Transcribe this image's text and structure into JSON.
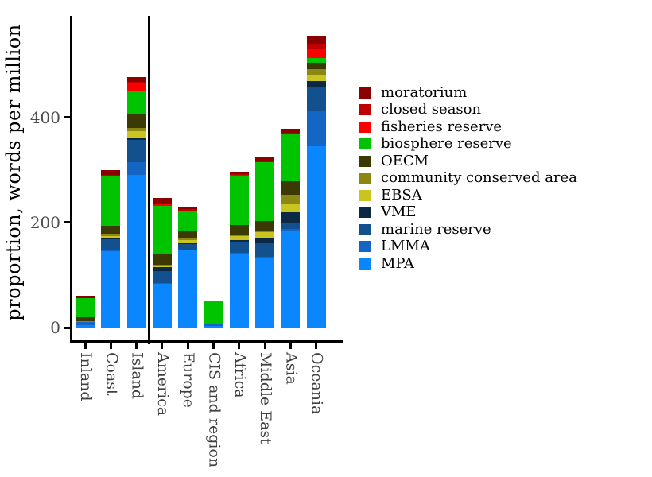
{
  "chart_data": {
    "type": "bar",
    "stacked": true,
    "title": "",
    "xlabel": "",
    "ylabel": "proportion, words per million",
    "ylim": [
      0,
      570
    ],
    "yticks": [
      "0",
      "200",
      "400"
    ],
    "grid": false,
    "legend_position": "right",
    "categories": [
      "Inland",
      "Coast",
      "Island",
      "America",
      "Europe",
      "CIS and region",
      "Africa",
      "Middle East",
      "Asia",
      "Oceania"
    ],
    "group_separator_after_category": "Island",
    "stack_order_bottom_to_top": [
      "MPA",
      "LMMA",
      "marine reserve",
      "VME",
      "EBSA",
      "community conserved area",
      "OECM",
      "biosphere reserve",
      "fisheries reserve",
      "closed season",
      "moratorium"
    ],
    "series": [
      {
        "name": "moratorium",
        "color": "#8B0000",
        "values": [
          5,
          10,
          10,
          11,
          3,
          0,
          5,
          8,
          7,
          16
        ]
      },
      {
        "name": "closed season",
        "color": "#C00000",
        "values": [
          0,
          2,
          3,
          2,
          2,
          0,
          2,
          2,
          2,
          10
        ]
      },
      {
        "name": "fisheries reserve",
        "color": "#FF0000",
        "values": [
          0,
          0,
          15,
          3,
          1,
          0,
          2,
          0,
          0,
          17
        ]
      },
      {
        "name": "biosphere reserve",
        "color": "#00C400",
        "values": [
          37,
          95,
          42,
          90,
          37,
          45,
          93,
          112,
          90,
          9
        ]
      },
      {
        "name": "OECM",
        "color": "#3B3A05",
        "values": [
          7,
          15,
          27,
          22,
          16,
          0,
          18,
          18,
          27,
          12
        ]
      },
      {
        "name": "community conserved area",
        "color": "#8A8713",
        "values": [
          2,
          4,
          7,
          2,
          2,
          0,
          3,
          3,
          17,
          11
        ]
      },
      {
        "name": "EBSA",
        "color": "#C9C420",
        "values": [
          0,
          4,
          12,
          2,
          6,
          0,
          7,
          12,
          15,
          12
        ]
      },
      {
        "name": "VME",
        "color": "#0C2844",
        "values": [
          0,
          2,
          4,
          8,
          2,
          0,
          5,
          10,
          20,
          12
        ]
      },
      {
        "name": "marine reserve",
        "color": "#12508E",
        "values": [
          0,
          20,
          42,
          22,
          10,
          0,
          20,
          25,
          12,
          45
        ]
      },
      {
        "name": "LMMA",
        "color": "#1566C4",
        "values": [
          5,
          3,
          25,
          2,
          2,
          3,
          2,
          2,
          3,
          67
        ]
      },
      {
        "name": "MPA",
        "color": "#0A87FF",
        "values": [
          5,
          145,
          290,
          83,
          147,
          3,
          140,
          133,
          185,
          345
        ]
      }
    ]
  }
}
